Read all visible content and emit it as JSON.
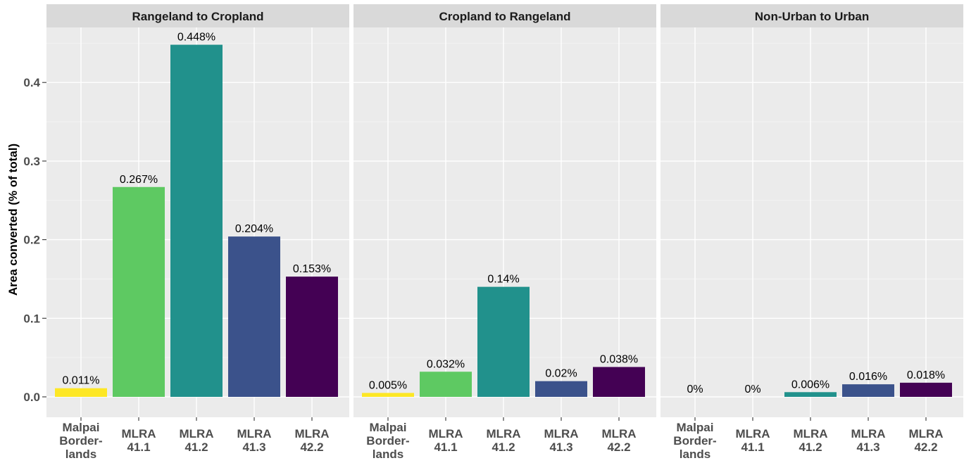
{
  "chart_data": {
    "type": "bar",
    "ylabel": "Area converted (% of total)",
    "ylim": [
      0,
      0.47
    ],
    "yticks": [
      "0.0",
      "0.1",
      "0.2",
      "0.3",
      "0.4"
    ],
    "ytick_values": [
      0,
      0.1,
      0.2,
      0.3,
      0.4
    ],
    "grid": true,
    "categories": [
      [
        "Malpai",
        "Border-",
        "lands"
      ],
      [
        "MLRA",
        "41.1"
      ],
      [
        "MLRA",
        "41.2"
      ],
      [
        "MLRA",
        "41.3"
      ],
      [
        "MLRA",
        "42.2"
      ]
    ],
    "colors": [
      "#fde725",
      "#5ec962",
      "#21918c",
      "#3b528b",
      "#440154"
    ],
    "panels": [
      {
        "title": "Rangeland to Cropland",
        "values": [
          0.011,
          0.267,
          0.448,
          0.204,
          0.153
        ],
        "labels": [
          "0.011%",
          "0.267%",
          "0.448%",
          "0.204%",
          "0.153%"
        ]
      },
      {
        "title": "Cropland to Rangeland",
        "values": [
          0.005,
          0.032,
          0.14,
          0.02,
          0.038
        ],
        "labels": [
          "0.005%",
          "0.032%",
          "0.14%",
          "0.02%",
          "0.038%"
        ]
      },
      {
        "title": "Non-Urban to Urban",
        "values": [
          0,
          0,
          0.006,
          0.016,
          0.018
        ],
        "labels": [
          "0%",
          "0%",
          "0.006%",
          "0.016%",
          "0.018%"
        ]
      }
    ]
  }
}
